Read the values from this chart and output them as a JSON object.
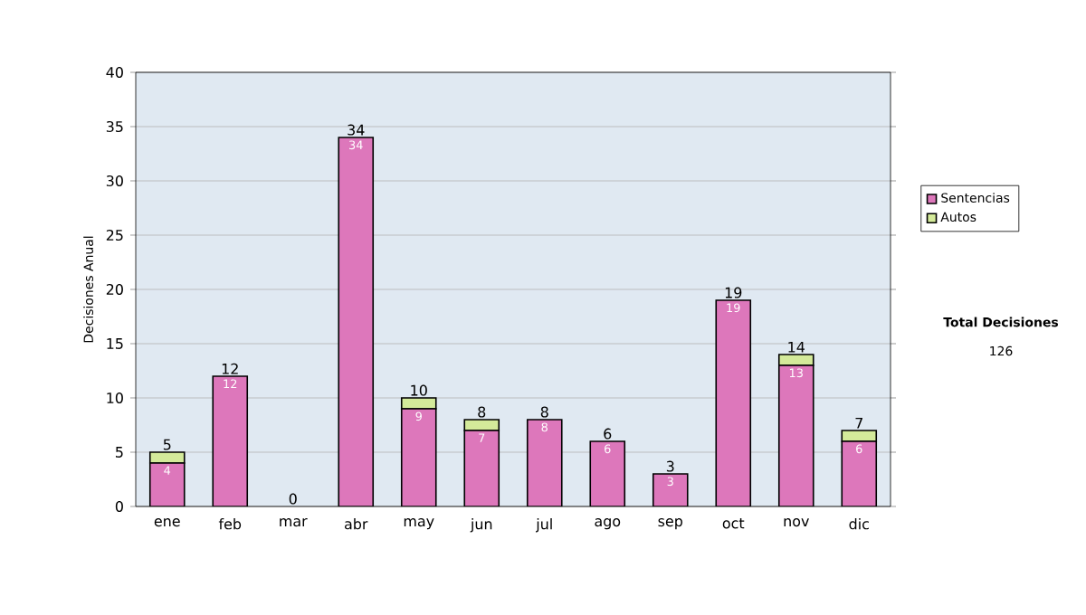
{
  "chart_data": {
    "type": "bar",
    "stacked": true,
    "ylabel": "Decisiones Anual",
    "categories": [
      "ene",
      "feb",
      "mar",
      "abr",
      "may",
      "jun",
      "jul",
      "ago",
      "sep",
      "oct",
      "nov",
      "dic"
    ],
    "series": [
      {
        "name": "Sentencias",
        "color": "#dd77bb",
        "values": [
          4,
          12,
          0,
          34,
          9,
          7,
          8,
          6,
          3,
          19,
          13,
          6
        ],
        "value_labels": [
          "4",
          "12",
          null,
          "34",
          "9",
          "7",
          "8",
          "6",
          "3",
          "19",
          "13",
          "6"
        ]
      },
      {
        "name": "Autos",
        "color": "#d4ea9a",
        "values": [
          1,
          0,
          0,
          0,
          1,
          1,
          0,
          0,
          0,
          0,
          1,
          1
        ]
      }
    ],
    "totals": [
      "5",
      "12",
      "0",
      "34",
      "10",
      "8",
      "8",
      "6",
      "3",
      "19",
      "14",
      "7"
    ],
    "ylim": [
      0,
      40
    ],
    "yticks": [
      0,
      5,
      10,
      15,
      20,
      25,
      30,
      35,
      40
    ],
    "grid": "y",
    "legend": "right",
    "annotations": [
      "Total Decisiones",
      "126"
    ]
  }
}
